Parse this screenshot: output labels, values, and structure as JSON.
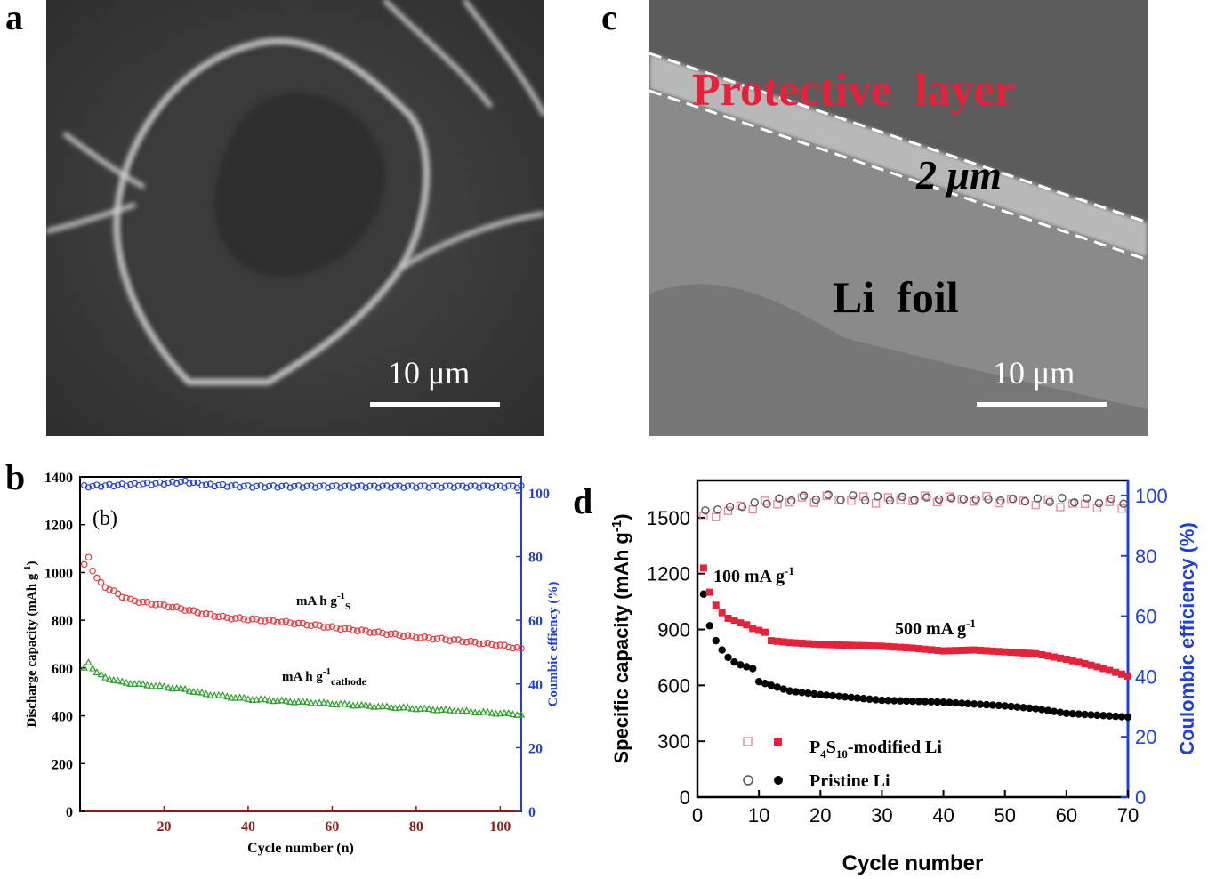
{
  "panel_labels": {
    "a": "a",
    "b": "b",
    "c": "c",
    "d": "d"
  },
  "panel_a": {
    "scale_bar": "10 μm"
  },
  "panel_c": {
    "protective_layer": "Protective  layer",
    "thickness": "2 μm",
    "li_foil": "Li  foil",
    "scale_bar": "10 μm"
  },
  "chart_data": [
    {
      "type": "scatter",
      "panel": "b",
      "inset_label": "(b)",
      "xlabel": "Cycle number (n)",
      "ylabel": "Discharge capacity (mAh g-1)",
      "y2label": "Coumbic effiency (%)",
      "xlim": [
        0,
        105
      ],
      "ylim": [
        0,
        1400
      ],
      "y2lim": [
        0,
        105
      ],
      "x_ticks": [
        "20",
        "40",
        "60",
        "80",
        "100"
      ],
      "y_ticks": [
        "0",
        "200",
        "400",
        "600",
        "800",
        "1000",
        "1200",
        "1400"
      ],
      "y2_ticks": [
        "0",
        "20",
        "40",
        "60",
        "80",
        "100"
      ],
      "annotations": [
        "mA h g-1S",
        "mA h g-1cathode"
      ],
      "colors": {
        "capacity_s": "#e8383b",
        "capacity_cathode": "#2ca02c",
        "efficiency": "#1f3fd6",
        "x_axis": "#8b1a1a"
      },
      "series": [
        {
          "values_xy": [
            [
              1,
              1030
            ],
            [
              2,
              1065
            ],
            [
              3,
              1010
            ],
            [
              4,
              975
            ],
            [
              5,
              955
            ],
            [
              6,
              940
            ],
            [
              8,
              920
            ],
            [
              10,
              900
            ],
            [
              12,
              885
            ],
            [
              15,
              875
            ],
            [
              20,
              862
            ],
            [
              25,
              845
            ],
            [
              30,
              825
            ],
            [
              35,
              810
            ],
            [
              40,
              805
            ],
            [
              50,
              790
            ],
            [
              60,
              770
            ],
            [
              70,
              750
            ],
            [
              80,
              730
            ],
            [
              90,
              715
            ],
            [
              100,
              695
            ],
            [
              105,
              680
            ]
          ]
        },
        {
          "values_xy": [
            [
              1,
              600
            ],
            [
              2,
              625
            ],
            [
              3,
              600
            ],
            [
              4,
              580
            ],
            [
              5,
              570
            ],
            [
              6,
              560
            ],
            [
              8,
              550
            ],
            [
              10,
              540
            ],
            [
              15,
              530
            ],
            [
              20,
              520
            ],
            [
              25,
              510
            ],
            [
              30,
              490
            ],
            [
              35,
              480
            ],
            [
              40,
              470
            ],
            [
              50,
              460
            ],
            [
              60,
              450
            ],
            [
              70,
              440
            ],
            [
              80,
              430
            ],
            [
              90,
              420
            ],
            [
              100,
              410
            ],
            [
              105,
              405
            ]
          ]
        },
        {
          "axis": "right",
          "values_xy": [
            [
              1,
              102
            ],
            [
              10,
              102.5
            ],
            [
              20,
              103
            ],
            [
              25,
              103.5
            ],
            [
              30,
              102.5
            ],
            [
              40,
              102
            ],
            [
              60,
              102
            ],
            [
              80,
              102
            ],
            [
              100,
              102
            ],
            [
              105,
              102
            ]
          ]
        }
      ]
    },
    {
      "type": "scatter",
      "panel": "d",
      "xlabel": "Cycle number",
      "ylabel": "Specific capacity (mAh g-1)",
      "y2label": "Coulombic efficiency (%)",
      "xlim": [
        0,
        70
      ],
      "ylim": [
        0,
        1700
      ],
      "y2lim": [
        0,
        105
      ],
      "x_ticks": [
        "0",
        "10",
        "20",
        "30",
        "40",
        "50",
        "60",
        "70"
      ],
      "y_ticks": [
        "0",
        "300",
        "600",
        "900",
        "1200",
        "1500"
      ],
      "y2_ticks": [
        "0",
        "20",
        "40",
        "60",
        "80",
        "100"
      ],
      "annotations": [
        "100 mA g-1",
        "500 mA g-1"
      ],
      "legend_location": "lower-left",
      "legend": [
        "P4S10-modified Li",
        "Pristine Li"
      ],
      "colors": {
        "modified": "#e8213a",
        "modified_open": "#f08aa0",
        "pristine": "#000000",
        "pristine_open": "#555555",
        "right_axis": "#1f3fd6"
      },
      "series": [
        {
          "name": "P4S10-modified Li",
          "values_xy": [
            [
              1,
              1230
            ],
            [
              2,
              1100
            ],
            [
              3,
              1030
            ],
            [
              4,
              990
            ],
            [
              5,
              960
            ],
            [
              6,
              950
            ],
            [
              7,
              935
            ],
            [
              8,
              925
            ],
            [
              9,
              905
            ],
            [
              10,
              895
            ],
            [
              11,
              885
            ],
            [
              12,
              840
            ],
            [
              15,
              830
            ],
            [
              20,
              820
            ],
            [
              25,
              815
            ],
            [
              30,
              810
            ],
            [
              35,
              800
            ],
            [
              40,
              785
            ],
            [
              45,
              790
            ],
            [
              50,
              780
            ],
            [
              55,
              770
            ],
            [
              60,
              740
            ],
            [
              65,
              700
            ],
            [
              70,
              650
            ]
          ]
        },
        {
          "name": "Pristine Li",
          "values_xy": [
            [
              1,
              1090
            ],
            [
              2,
              920
            ],
            [
              3,
              840
            ],
            [
              4,
              790
            ],
            [
              5,
              750
            ],
            [
              6,
              725
            ],
            [
              7,
              710
            ],
            [
              8,
              700
            ],
            [
              9,
              690
            ],
            [
              10,
              620
            ],
            [
              12,
              600
            ],
            [
              15,
              570
            ],
            [
              20,
              550
            ],
            [
              25,
              535
            ],
            [
              30,
              520
            ],
            [
              35,
              515
            ],
            [
              40,
              510
            ],
            [
              45,
              500
            ],
            [
              50,
              490
            ],
            [
              55,
              475
            ],
            [
              60,
              450
            ],
            [
              65,
              440
            ],
            [
              70,
              430
            ]
          ]
        },
        {
          "name": "P4S10-modified Li",
          "axis": "right",
          "values_xy": [
            [
              1,
              92
            ],
            [
              5,
              95
            ],
            [
              10,
              97
            ],
            [
              15,
              98
            ],
            [
              20,
              99
            ],
            [
              30,
              98.5
            ],
            [
              40,
              99
            ],
            [
              50,
              98.5
            ],
            [
              60,
              97
            ],
            [
              70,
              96.5
            ]
          ]
        },
        {
          "name": "Pristine Li",
          "axis": "right",
          "values_xy": [
            [
              1,
              95
            ],
            [
              5,
              96
            ],
            [
              10,
              97.5
            ],
            [
              15,
              99
            ],
            [
              20,
              99.5
            ],
            [
              30,
              99
            ],
            [
              40,
              99
            ],
            [
              50,
              98.5
            ],
            [
              60,
              98.5
            ],
            [
              70,
              98
            ]
          ]
        }
      ]
    }
  ]
}
